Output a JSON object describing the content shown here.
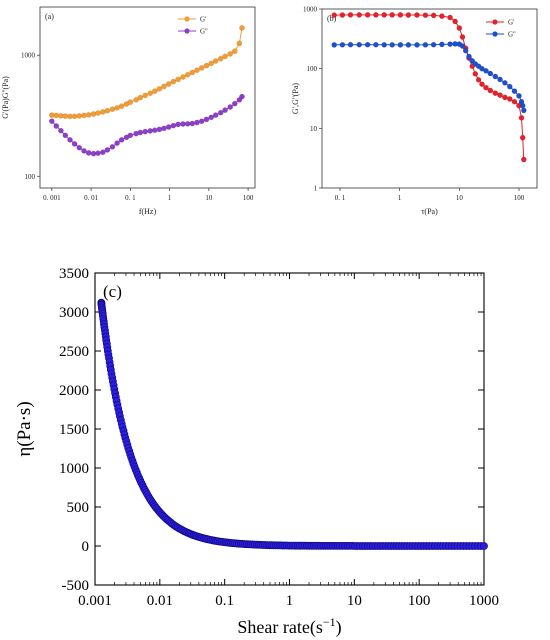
{
  "chart_data": [
    {
      "type": "line",
      "panel_label": "(a)",
      "xlabel": "f(Hz)",
      "ylabel": "G'(Pa)G''(Pa)",
      "x_scale": "log",
      "y_scale": "log",
      "xlim": [
        0.0005,
        150
      ],
      "ylim": [
        80,
        2500
      ],
      "x_ticks": [
        0.001,
        0.01,
        0.1,
        1,
        10,
        100
      ],
      "x_tick_labels": [
        "0. 001",
        "0. 01",
        "0. 1",
        "1",
        "10",
        "100"
      ],
      "y_ticks": [
        100,
        1000
      ],
      "y_tick_labels": [
        "100",
        "1000"
      ],
      "legend_position": "top-center",
      "grid": false,
      "series": [
        {
          "name": "G'",
          "color": "#f39c34",
          "x": [
            0.001,
            0.0013,
            0.0017,
            0.0022,
            0.0029,
            0.0038,
            0.005,
            0.0066,
            0.0087,
            0.0115,
            0.015,
            0.02,
            0.026,
            0.035,
            0.046,
            0.06,
            0.08,
            0.1,
            0.14,
            0.18,
            0.24,
            0.32,
            0.42,
            0.55,
            0.72,
            0.95,
            1.25,
            1.65,
            2.2,
            2.9,
            3.8,
            5,
            6.6,
            8.7,
            11.5,
            15,
            20,
            26,
            35,
            46,
            60,
            70
          ],
          "y": [
            320,
            318,
            316,
            314,
            313,
            313,
            315,
            318,
            322,
            327,
            333,
            340,
            348,
            358,
            368,
            380,
            395,
            410,
            428,
            446,
            465,
            485,
            505,
            528,
            552,
            578,
            605,
            632,
            660,
            690,
            720,
            752,
            785,
            820,
            856,
            895,
            935,
            978,
            1025,
            1080,
            1250,
            1680
          ]
        },
        {
          "name": "G''",
          "color": "#8e3fc9",
          "x": [
            0.001,
            0.0013,
            0.0017,
            0.0022,
            0.0029,
            0.0038,
            0.005,
            0.0066,
            0.0087,
            0.0115,
            0.015,
            0.02,
            0.026,
            0.035,
            0.046,
            0.06,
            0.08,
            0.1,
            0.14,
            0.18,
            0.24,
            0.32,
            0.42,
            0.55,
            0.72,
            0.95,
            1.25,
            1.65,
            2.2,
            2.9,
            3.8,
            5,
            6.6,
            8.7,
            11.5,
            15,
            20,
            26,
            35,
            46,
            60,
            70
          ],
          "y": [
            285,
            260,
            238,
            218,
            200,
            185,
            172,
            162,
            156,
            154,
            155,
            158,
            165,
            175,
            188,
            200,
            210,
            218,
            225,
            230,
            234,
            237,
            240,
            244,
            249,
            255,
            262,
            268,
            270,
            271,
            273,
            278,
            285,
            295,
            307,
            320,
            335,
            352,
            373,
            398,
            428,
            455
          ]
        }
      ]
    },
    {
      "type": "line",
      "panel_label": "(b)",
      "xlabel": "τ(Pa)",
      "ylabel": "G',G''(Pa)",
      "x_scale": "log",
      "y_scale": "log",
      "xlim": [
        0.05,
        200
      ],
      "ylim": [
        1,
        1000
      ],
      "x_ticks": [
        0.1,
        1,
        10,
        100
      ],
      "x_tick_labels": [
        "0. 1",
        "1",
        "10",
        "100"
      ],
      "y_ticks": [
        1,
        10,
        100,
        1000
      ],
      "y_tick_labels": [
        "1",
        "10",
        "100",
        "1000"
      ],
      "legend_position": "top-right",
      "grid": false,
      "series": [
        {
          "name": "G'",
          "color": "#e8202a",
          "x": [
            0.08,
            0.11,
            0.15,
            0.21,
            0.29,
            0.4,
            0.55,
            0.75,
            1.03,
            1.4,
            1.95,
            2.7,
            3.7,
            5.1,
            7,
            8.5,
            10,
            11.3,
            12.8,
            14.5,
            16.4,
            18.5,
            21,
            24,
            28,
            33,
            40,
            48,
            58,
            70,
            84,
            100,
            110,
            115,
            120
          ],
          "y": [
            790,
            792,
            795,
            796,
            796,
            797,
            797,
            796,
            795,
            794,
            792,
            788,
            780,
            760,
            720,
            620,
            480,
            340,
            220,
            150,
            110,
            82,
            65,
            55,
            48,
            43,
            39,
            36,
            33,
            31,
            28,
            24,
            15,
            7,
            3
          ]
        },
        {
          "name": "G''",
          "color": "#1f4fd0",
          "x": [
            0.08,
            0.11,
            0.15,
            0.21,
            0.29,
            0.4,
            0.55,
            0.75,
            1.03,
            1.4,
            1.95,
            2.7,
            3.7,
            5.1,
            7,
            8.5,
            10,
            11.3,
            12.8,
            14.5,
            16.4,
            18.5,
            21,
            24,
            28,
            33,
            40,
            48,
            58,
            70,
            84,
            100,
            110,
            115,
            120
          ],
          "y": [
            250,
            251,
            252,
            252,
            252,
            252,
            251,
            251,
            250,
            250,
            250,
            251,
            252,
            255,
            258,
            260,
            258,
            240,
            200,
            160,
            135,
            120,
            110,
            100,
            92,
            83,
            74,
            66,
            58,
            50,
            42,
            35,
            28,
            24,
            20
          ]
        }
      ]
    },
    {
      "type": "scatter",
      "panel_label": "(c)",
      "xlabel": "Shear rate(s",
      "xlabel_sup": "−1",
      "xlabel_end": ")",
      "ylabel": "η(Pa·s)",
      "x_scale": "log",
      "xlim": [
        0.001,
        1000
      ],
      "ylim": [
        -500,
        3500
      ],
      "x_ticks": [
        0.001,
        0.01,
        0.1,
        1,
        10,
        100,
        1000
      ],
      "x_tick_labels": [
        "0.001",
        "0.01",
        "0.1",
        "1",
        "10",
        "100",
        "1000"
      ],
      "y_ticks": [
        -500,
        0,
        500,
        1000,
        1500,
        2000,
        2500,
        3000,
        3500
      ],
      "y_tick_labels": [
        "-500",
        "0",
        "500",
        "1000",
        "1500",
        "2000",
        "2500",
        "3000",
        "3500"
      ],
      "grid": false,
      "series": [
        {
          "color": "#2a1ee0",
          "model": {
            "type": "power-law",
            "eta_at_x0": 3120,
            "x0": 0.00125,
            "exponent": -0.95
          },
          "x_range": [
            0.00125,
            1000
          ],
          "n_points": 220
        }
      ]
    }
  ]
}
